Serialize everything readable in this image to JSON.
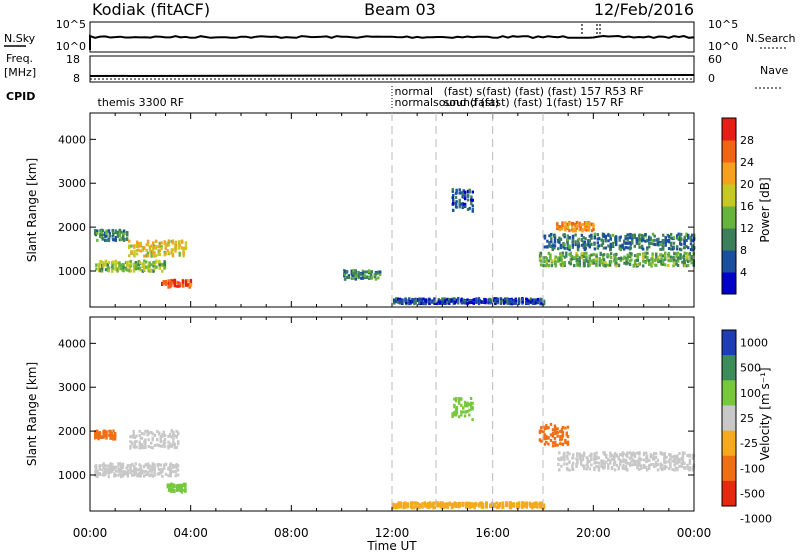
{
  "header": {
    "station": "Kodiak (fitACF)",
    "beam": "Beam 03",
    "date": "12/Feb/2016"
  },
  "side_labels": {
    "nsky": "N.Sky",
    "nsearch": "N.Search",
    "freq_line1": "Freq.",
    "freq_line2": "[MHz]",
    "nave": "Nave",
    "cpid": "CPID"
  },
  "noise_panel": {
    "left_ticks": [
      "10^5",
      "10^0"
    ],
    "right_ticks": [
      "10^5",
      "10^0"
    ]
  },
  "freq_panel": {
    "left_ticks": [
      "18",
      "8"
    ],
    "right_ticks": [
      "60",
      "0"
    ]
  },
  "cpid_labels": [
    {
      "text": "themis 3300 RF",
      "t": 0.3,
      "row": 1
    },
    {
      "text": "normal",
      "t": 12.1,
      "row": 0
    },
    {
      "text": "normalsound (fast)",
      "t": 12.1,
      "row": 1
    },
    {
      "text": "(fast) s(fast) (fast) (fast) 157 R53 RF",
      "t": 14.05,
      "row": 0
    },
    {
      "text": "sound (fast) (fast) 1(fast) 157 RF",
      "t": 14.05,
      "row": 1
    }
  ],
  "colors": {
    "power": [
      "#0000c8",
      "#1a4fa0",
      "#3c7f5a",
      "#66b43c",
      "#c8c823",
      "#f5a01e",
      "#f06414",
      "#e61e14"
    ],
    "velocity": [
      "#1e3cb4",
      "#3c8c5a",
      "#78c83c",
      "#c8c8c8",
      "#f5aa1e",
      "#f06e14",
      "#e6280f"
    ],
    "gray_band": "#c8c8c8"
  },
  "chart_data": [
    {
      "type": "heatmap",
      "title": "Power",
      "ylabel": "Slant Range [km]",
      "ylim": [
        180,
        4600
      ],
      "yticks": [
        "1000",
        "2000",
        "3000",
        "4000"
      ],
      "xlim": [
        0,
        24
      ],
      "colorbar": {
        "label": "Power [dB]",
        "ticks": [
          "4",
          "8",
          "12",
          "16",
          "20",
          "24",
          "28"
        ],
        "range": [
          0,
          30
        ]
      },
      "dashed_lines_ut": [
        12,
        13.75,
        16,
        18
      ],
      "features": [
        {
          "t0": 0.1,
          "t1": 1.5,
          "r_center": 1800,
          "r_spread": 120,
          "value": 9,
          "note": "early band"
        },
        {
          "t0": 0.2,
          "t1": 3.0,
          "r_center": 1100,
          "r_spread": 120,
          "value": 14
        },
        {
          "t0": 1.5,
          "t1": 3.8,
          "r_center": 1500,
          "r_spread": 180,
          "value": 18
        },
        {
          "t0": 2.8,
          "t1": 4.0,
          "r_center": 700,
          "r_spread": 80,
          "value": 26
        },
        {
          "t0": 10.0,
          "t1": 11.5,
          "r_center": 900,
          "r_spread": 100,
          "value": 10
        },
        {
          "t0": 14.3,
          "t1": 15.2,
          "r_center": 2600,
          "r_spread": 250,
          "value": 6
        },
        {
          "t0": 12.0,
          "t1": 18.0,
          "r_center": 300,
          "r_spread": 60,
          "value": 5
        },
        {
          "t0": 17.8,
          "t1": 24.0,
          "r_center": 1250,
          "r_spread": 150,
          "value": 12
        },
        {
          "t0": 18.0,
          "t1": 24.0,
          "r_center": 1650,
          "r_spread": 180,
          "value": 8
        },
        {
          "t0": 18.5,
          "t1": 20.0,
          "r_center": 2000,
          "r_spread": 100,
          "value": 22
        }
      ]
    },
    {
      "type": "heatmap",
      "title": "Velocity",
      "ylabel": "Slant Range [km]",
      "xlabel": "Time UT",
      "ylim": [
        180,
        4600
      ],
      "yticks": [
        "1000",
        "2000",
        "3000",
        "4000"
      ],
      "xlim": [
        0,
        24
      ],
      "xticks": [
        "00:00",
        "04:00",
        "08:00",
        "12:00",
        "16:00",
        "20:00",
        "00:00"
      ],
      "colorbar": {
        "label": "Velocity [m s^-1]",
        "ticks": [
          "1000",
          "500",
          "100",
          "25",
          "-25",
          "-100",
          "-500",
          "-1000"
        ]
      },
      "dashed_lines_ut": [
        12,
        13.75,
        16,
        18
      ],
      "features": [
        {
          "t0": 0.1,
          "t1": 3.5,
          "r_center": 1100,
          "r_spread": 150,
          "value": 0
        },
        {
          "t0": 0.1,
          "t1": 1.0,
          "r_center": 1900,
          "r_spread": 100,
          "value": -300
        },
        {
          "t0": 1.5,
          "t1": 3.5,
          "r_center": 1800,
          "r_spread": 200,
          "value": 0
        },
        {
          "t0": 3.0,
          "t1": 3.8,
          "r_center": 700,
          "r_spread": 100,
          "value": 80
        },
        {
          "t0": 14.3,
          "t1": 15.2,
          "r_center": 2500,
          "r_spread": 250,
          "value": 80
        },
        {
          "t0": 12.0,
          "t1": 18.0,
          "r_center": 300,
          "r_spread": 60,
          "value": -80
        },
        {
          "t0": 17.8,
          "t1": 19.0,
          "r_center": 1900,
          "r_spread": 250,
          "value": -300
        },
        {
          "t0": 18.5,
          "t1": 24.0,
          "r_center": 1300,
          "r_spread": 200,
          "value": 0
        }
      ]
    }
  ],
  "x_axis_label": "Time UT"
}
